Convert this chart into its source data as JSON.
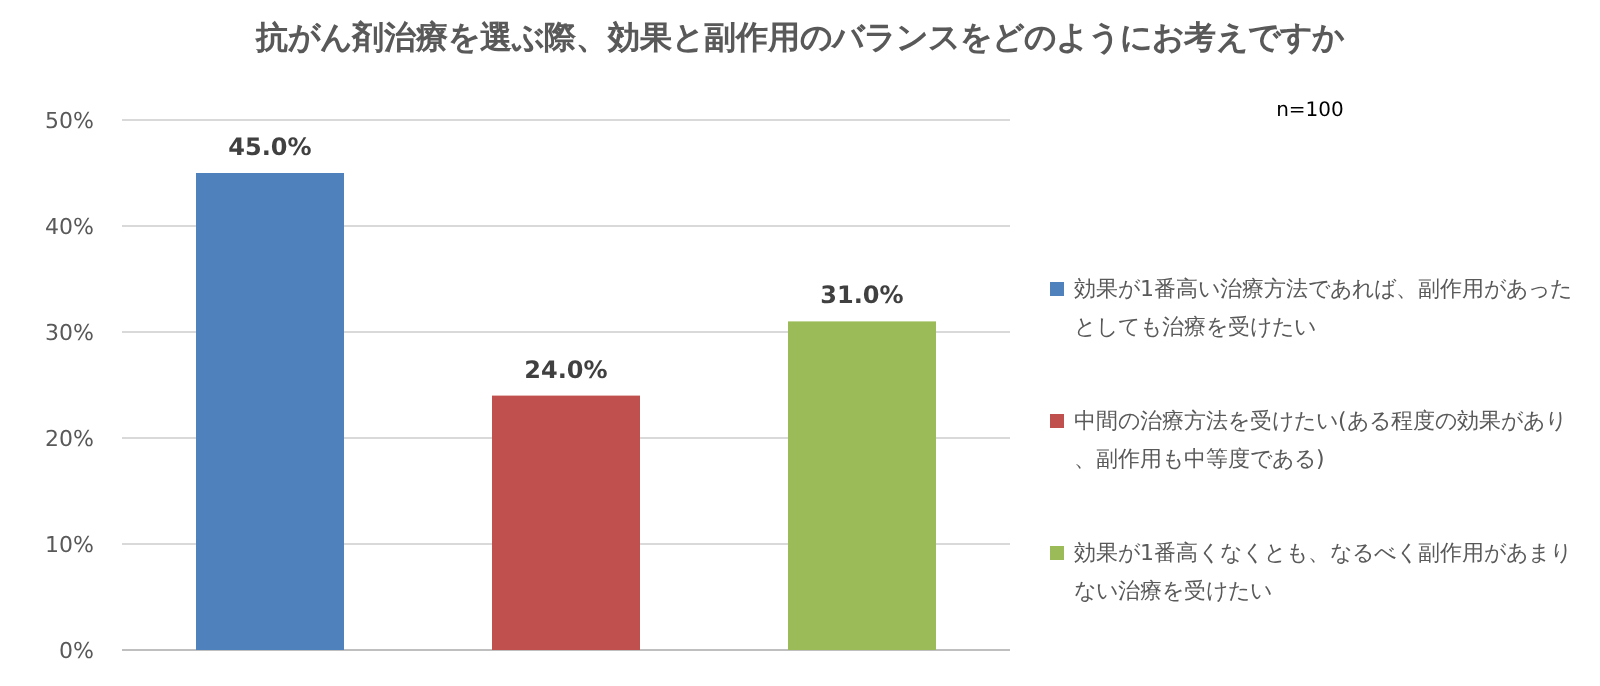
{
  "chart_data": {
    "type": "bar",
    "title": "抗がん剤治療を選ぶ際、効果と副作用のバランスをどのようにお考えですか",
    "annotations": [
      "n=100"
    ],
    "categories": [
      null,
      null,
      null
    ],
    "series": [
      {
        "name": "効果が1番高い治療方法であれば、副作用があったとしても治療を受けたい",
        "color": "#4f81bd",
        "values": [
          45,
          null,
          null
        ],
        "value_labels": [
          "45.0%",
          null,
          null
        ]
      },
      {
        "name": "中間の治療方法を受けたい(ある程度の効果があり、副作用も中等度である)",
        "color": "#c0504d",
        "values": [
          null,
          24,
          null
        ],
        "value_labels": [
          null,
          "24.0%",
          null
        ]
      },
      {
        "name": "効果が1番高くなくとも、なるべく副作用があまりない治療を受けたい",
        "color": "#9bbb59",
        "values": [
          null,
          null,
          31
        ],
        "value_labels": [
          null,
          null,
          "31.0%"
        ]
      }
    ],
    "ylim": [
      0,
      50
    ],
    "yticks": [
      {
        "value": 0,
        "label": "0%"
      },
      {
        "value": 10,
        "label": "10%"
      },
      {
        "value": 20,
        "label": "20%"
      },
      {
        "value": 30,
        "label": "30%"
      },
      {
        "value": 40,
        "label": "40%"
      },
      {
        "value": 50,
        "label": "50%"
      }
    ],
    "grid": "y",
    "legend": "right"
  }
}
